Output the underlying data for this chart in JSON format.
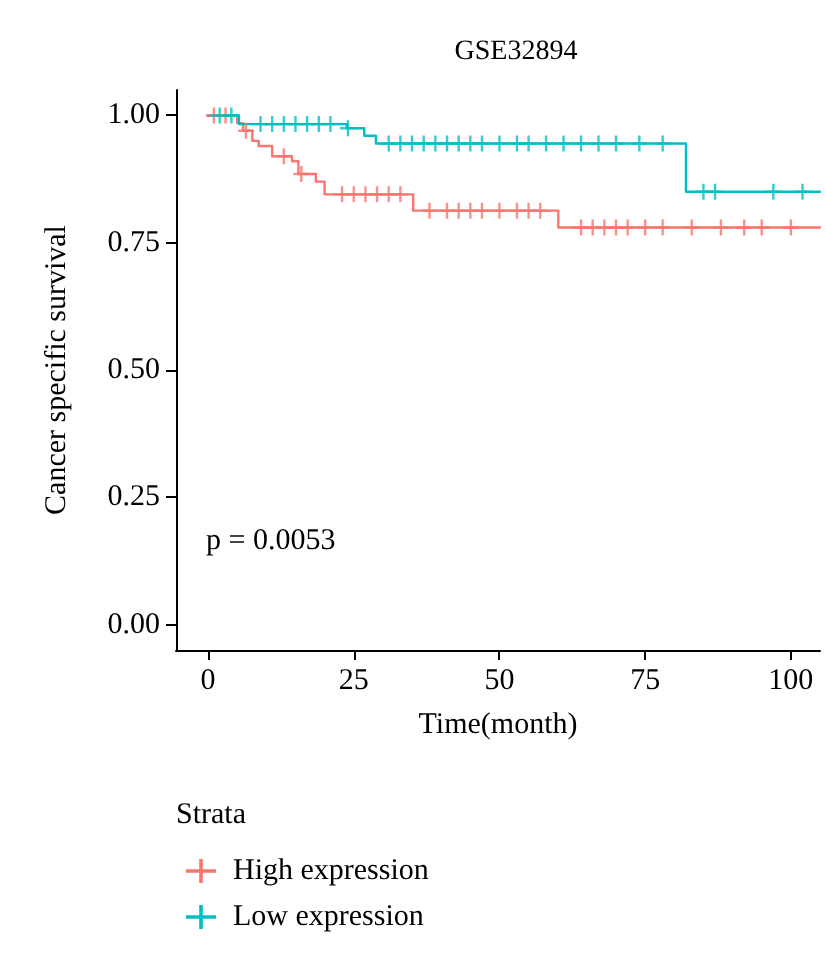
{
  "chart_data": {
    "type": "step",
    "title": "GSE32894",
    "xlabel": "Time(month)",
    "ylabel": "Cancer specific survival",
    "legend_title": "Strata",
    "legend": "bottom left",
    "grid": false,
    "line_style": "solid",
    "xlim": [
      -5.5,
      105
    ],
    "xticks": [
      0,
      25,
      50,
      75,
      100
    ],
    "ylim": [
      -0.05,
      1.05
    ],
    "yticks": [
      {
        "value": 0,
        "label": "0.00"
      },
      {
        "value": 0.25,
        "label": "0.25"
      },
      {
        "value": 0.5,
        "label": "0.50"
      },
      {
        "value": 0.75,
        "label": "0.75"
      },
      {
        "value": 1,
        "label": "1.00"
      }
    ],
    "annotations": [
      "p = 0.0053"
    ],
    "series": [
      {
        "name": "High expression",
        "color": "#f8766d",
        "x": [
          0,
          5,
          6,
          7.6,
          8.7,
          11,
          14.4,
          15.5,
          18.5,
          20,
          35.2,
          60.1,
          105
        ],
        "values": [
          1.0,
          0.985,
          0.97,
          0.95,
          0.94,
          0.92,
          0.91,
          0.885,
          0.87,
          0.845,
          0.813,
          0.78,
          0.78
        ]
      },
      {
        "name": "Low expression",
        "color": "#00bfc4",
        "x": [
          0,
          5.3,
          23.8,
          26.8,
          28.8,
          82,
          105
        ],
        "values": [
          1.0,
          0.983,
          0.975,
          0.96,
          0.945,
          0.85,
          0.85
        ]
      },
      {
        "type": "scatter",
        "marker": "cross",
        "color": "#f8766d",
        "x": [
          1,
          3,
          6.5,
          13,
          16,
          23,
          25,
          27,
          29,
          31,
          33,
          38,
          41,
          43,
          45,
          47,
          50,
          53,
          55,
          57,
          64,
          66,
          68,
          70,
          72,
          75,
          78,
          83,
          88,
          92,
          95,
          100
        ],
        "values": [
          1.0,
          1.0,
          0.97,
          0.92,
          0.885,
          0.845,
          0.845,
          0.845,
          0.845,
          0.845,
          0.845,
          0.813,
          0.813,
          0.813,
          0.813,
          0.813,
          0.813,
          0.813,
          0.813,
          0.813,
          0.78,
          0.78,
          0.78,
          0.78,
          0.78,
          0.78,
          0.78,
          0.78,
          0.78,
          0.78,
          0.78,
          0.78
        ]
      },
      {
        "type": "scatter",
        "marker": "cross",
        "color": "#00bfc4",
        "x": [
          2,
          4,
          9,
          11,
          13,
          15,
          17,
          19,
          21,
          24,
          31,
          33,
          35,
          37,
          39,
          41,
          43,
          45,
          47,
          50,
          53,
          55,
          58,
          61,
          64,
          67,
          70,
          74,
          78,
          85,
          87,
          97,
          102
        ],
        "values": [
          1.0,
          1.0,
          0.983,
          0.983,
          0.983,
          0.983,
          0.983,
          0.983,
          0.983,
          0.975,
          0.945,
          0.945,
          0.945,
          0.945,
          0.945,
          0.945,
          0.945,
          0.945,
          0.945,
          0.945,
          0.945,
          0.945,
          0.945,
          0.945,
          0.945,
          0.945,
          0.945,
          0.945,
          0.945,
          0.85,
          0.85,
          0.85,
          0.85
        ]
      }
    ]
  }
}
